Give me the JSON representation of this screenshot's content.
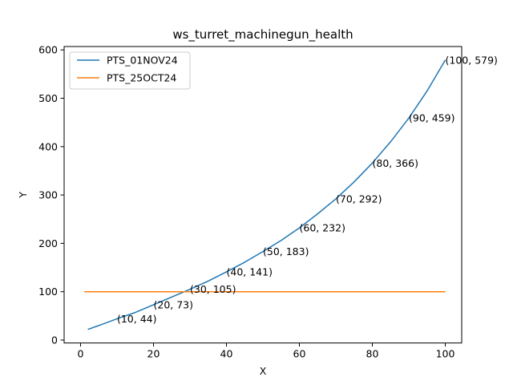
{
  "chart_data": {
    "type": "line",
    "title": "ws_turret_machinegun_health",
    "xlabel": "X",
    "ylabel": "Y",
    "xlim": [
      -4.5,
      104.5
    ],
    "ylim": [
      -6,
      607
    ],
    "xticks": [
      0,
      20,
      40,
      60,
      80,
      100
    ],
    "yticks": [
      0,
      100,
      200,
      300,
      400,
      500,
      600
    ],
    "grid": false,
    "legend_position": "top-left",
    "series": [
      {
        "name": "PTS_01NOV24",
        "color": "#1f77b4",
        "x": [
          2,
          5,
          10,
          15,
          20,
          25,
          30,
          35,
          40,
          45,
          50,
          55,
          60,
          65,
          70,
          75,
          80,
          85,
          90,
          95,
          100
        ],
        "y": [
          22,
          30,
          44,
          57,
          73,
          89,
          105,
          122,
          141,
          161,
          183,
          206,
          232,
          261,
          292,
          327,
          366,
          410,
          459,
          515,
          579
        ]
      },
      {
        "name": "PTS_25OCT24",
        "color": "#ff7f0e",
        "x": [
          1,
          100
        ],
        "y": [
          100,
          100
        ]
      }
    ],
    "annotations": [
      {
        "text": "(10, 44)",
        "x": 10,
        "y": 44
      },
      {
        "text": "(20, 73)",
        "x": 20,
        "y": 73
      },
      {
        "text": "(30, 105)",
        "x": 30,
        "y": 105
      },
      {
        "text": "(40, 141)",
        "x": 40,
        "y": 141
      },
      {
        "text": "(50, 183)",
        "x": 50,
        "y": 183
      },
      {
        "text": "(60, 232)",
        "x": 60,
        "y": 232
      },
      {
        "text": "(70, 292)",
        "x": 70,
        "y": 292
      },
      {
        "text": "(80, 366)",
        "x": 80,
        "y": 366
      },
      {
        "text": "(90, 459)",
        "x": 90,
        "y": 459
      },
      {
        "text": "(100, 579)",
        "x": 100,
        "y": 579
      }
    ]
  }
}
